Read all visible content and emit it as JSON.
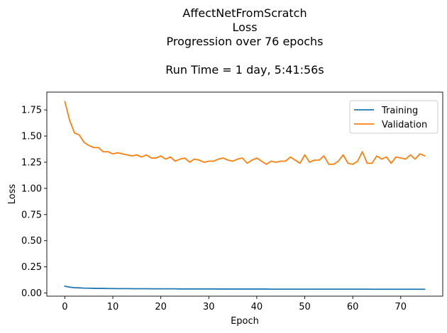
{
  "chart_data": {
    "type": "line",
    "title_lines": [
      "AffectNetFromScratch",
      "Loss",
      "Progression over 76 epochs",
      "",
      "Run Time = 1 day, 5:41:56s"
    ],
    "xlabel": "Epoch",
    "ylabel": "Loss",
    "xlim": [
      -3.75,
      78.75
    ],
    "ylim": [
      -0.03,
      1.92
    ],
    "xticks": [
      0,
      10,
      20,
      30,
      40,
      50,
      60,
      70
    ],
    "yticks": [
      0.0,
      0.25,
      0.5,
      0.75,
      1.0,
      1.25,
      1.5,
      1.75
    ],
    "ytick_labels": [
      "0.00",
      "0.25",
      "0.50",
      "0.75",
      "1.00",
      "1.25",
      "1.50",
      "1.75"
    ],
    "grid": false,
    "legend_position": "top-right",
    "series": [
      {
        "name": "Training",
        "color": "#1f77b4",
        "values": [
          0.065,
          0.056,
          0.051,
          0.049,
          0.047,
          0.046,
          0.045,
          0.044,
          0.044,
          0.043,
          0.043,
          0.042,
          0.042,
          0.042,
          0.041,
          0.041,
          0.041,
          0.041,
          0.04,
          0.04,
          0.04,
          0.04,
          0.04,
          0.04,
          0.039,
          0.039,
          0.039,
          0.039,
          0.039,
          0.039,
          0.039,
          0.039,
          0.038,
          0.038,
          0.038,
          0.038,
          0.038,
          0.038,
          0.038,
          0.038,
          0.038,
          0.038,
          0.038,
          0.037,
          0.037,
          0.037,
          0.037,
          0.037,
          0.037,
          0.037,
          0.037,
          0.037,
          0.037,
          0.037,
          0.037,
          0.037,
          0.037,
          0.037,
          0.037,
          0.037,
          0.037,
          0.037,
          0.037,
          0.037,
          0.036,
          0.036,
          0.036,
          0.036,
          0.036,
          0.036,
          0.036,
          0.036,
          0.036,
          0.036,
          0.036,
          0.036
        ]
      },
      {
        "name": "Validation",
        "color": "#ff7f0e",
        "values": [
          1.83,
          1.65,
          1.53,
          1.51,
          1.44,
          1.41,
          1.39,
          1.39,
          1.35,
          1.35,
          1.33,
          1.34,
          1.33,
          1.32,
          1.31,
          1.32,
          1.3,
          1.32,
          1.29,
          1.29,
          1.31,
          1.28,
          1.3,
          1.26,
          1.28,
          1.29,
          1.25,
          1.28,
          1.27,
          1.25,
          1.26,
          1.26,
          1.28,
          1.29,
          1.27,
          1.26,
          1.28,
          1.29,
          1.24,
          1.27,
          1.29,
          1.26,
          1.23,
          1.26,
          1.25,
          1.26,
          1.26,
          1.3,
          1.27,
          1.24,
          1.32,
          1.25,
          1.27,
          1.27,
          1.31,
          1.23,
          1.23,
          1.26,
          1.32,
          1.24,
          1.23,
          1.26,
          1.35,
          1.24,
          1.24,
          1.31,
          1.28,
          1.3,
          1.24,
          1.3,
          1.29,
          1.28,
          1.32,
          1.28,
          1.33,
          1.31
        ]
      }
    ]
  }
}
